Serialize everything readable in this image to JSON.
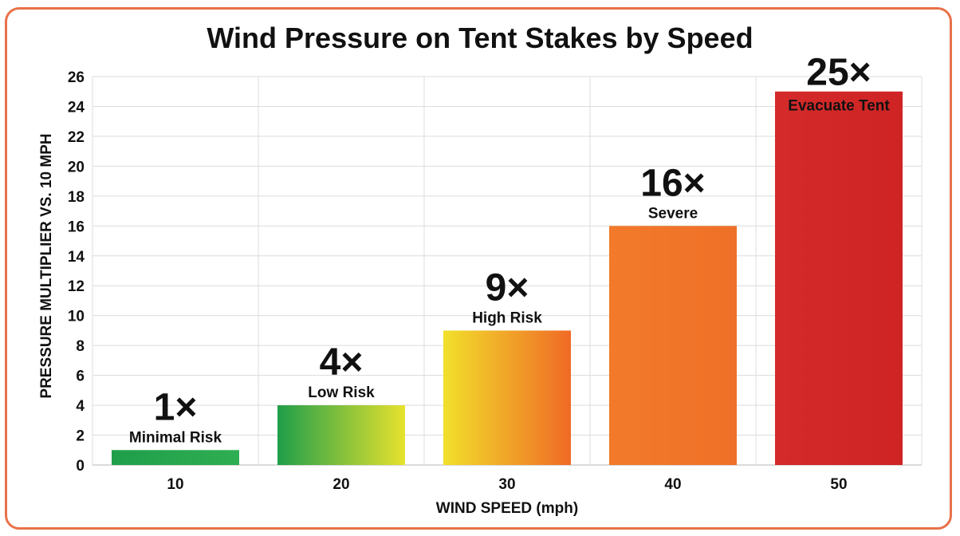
{
  "title": "Wind Pressure on Tent Stakes by Speed",
  "chart_data": {
    "type": "bar",
    "title": "Wind Pressure on Tent Stakes by Speed",
    "xlabel": "WIND SPEED (mph)",
    "ylabel": "PRESSURE MULTIPLIER VS. 10 MPH",
    "categories": [
      "10",
      "20",
      "30",
      "40",
      "50"
    ],
    "values": [
      1,
      4,
      9,
      16,
      25
    ],
    "value_labels": [
      "1×",
      "4×",
      "9×",
      "16×",
      "25×"
    ],
    "risk_labels": [
      "Minimal Risk",
      "Low Risk",
      "High Risk",
      "Severe",
      "Evacuate Tent"
    ],
    "yticks": [
      0,
      2,
      4,
      6,
      8,
      10,
      12,
      14,
      16,
      18,
      20,
      22,
      24,
      26
    ],
    "ylim": [
      0,
      26
    ],
    "grid": true,
    "colors": [
      [
        "#1f9e4a",
        "#2fae52"
      ],
      [
        "#1f9e4a",
        "#e7e22e"
      ],
      [
        "#f1e02b",
        "#f06a26"
      ],
      [
        "#f27a2a",
        "#ef7028"
      ],
      [
        "#d42a2a",
        "#cf2424"
      ]
    ]
  }
}
